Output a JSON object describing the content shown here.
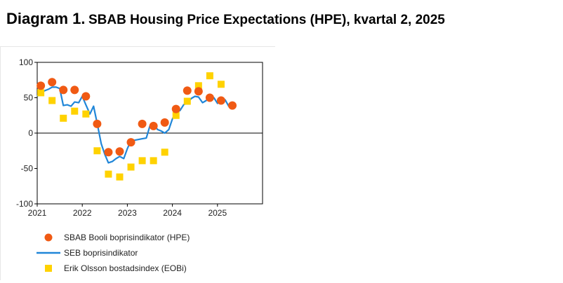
{
  "title": {
    "prefix": "Diagram 1.",
    "text": "SBAB Housing Price Expectations (HPE), kvartal 2, 2025"
  },
  "colors": {
    "hpe": "#F05A14",
    "seb": "#2086D8",
    "eobi": "#FFD200"
  },
  "chart_data": {
    "type": "line",
    "title": "",
    "xlabel": "",
    "ylabel": "",
    "xlim": [
      2021.0,
      2026.0
    ],
    "ylim": [
      -100,
      100
    ],
    "x_ticks": [
      2021,
      2022,
      2023,
      2024,
      2025
    ],
    "x_tick_labels": [
      "2021",
      "2022",
      "2023",
      "2024",
      "2025"
    ],
    "y_ticks": [
      100,
      50,
      0,
      -50,
      -100
    ],
    "y_tick_labels": [
      "100",
      "50",
      "0",
      "-50",
      "-100"
    ],
    "grid": false,
    "zero_line": true,
    "legend_position": "bottom",
    "series": [
      {
        "name": "SBAB Booli boprisindikator (HPE)",
        "style": "marker-circle",
        "color": "#F05A14",
        "x": [
          2021.08,
          2021.33,
          2021.58,
          2021.83,
          2022.08,
          2022.33,
          2022.58,
          2022.83,
          2023.08,
          2023.33,
          2023.58,
          2023.83,
          2024.08,
          2024.33,
          2024.58,
          2024.83,
          2025.08,
          2025.33
        ],
        "y": [
          67,
          72,
          61,
          61,
          52,
          13,
          -27,
          -26,
          -13,
          13,
          10,
          15,
          34,
          60,
          59,
          50,
          46,
          39
        ]
      },
      {
        "name": "SEB boprisindikator",
        "style": "line",
        "color": "#2086D8",
        "x": [
          2021.0,
          2021.08,
          2021.17,
          2021.25,
          2021.33,
          2021.42,
          2021.5,
          2021.58,
          2021.67,
          2021.75,
          2021.83,
          2021.92,
          2022.0,
          2022.08,
          2022.17,
          2022.25,
          2022.33,
          2022.42,
          2022.5,
          2022.58,
          2022.67,
          2022.75,
          2022.83,
          2022.92,
          2023.0,
          2023.08,
          2023.17,
          2023.25,
          2023.33,
          2023.42,
          2023.5,
          2023.58,
          2023.67,
          2023.75,
          2023.83,
          2023.92,
          2024.0,
          2024.08,
          2024.17,
          2024.25,
          2024.33,
          2024.42,
          2024.5,
          2024.58,
          2024.67,
          2024.75,
          2024.83,
          2024.92,
          2025.0,
          2025.08,
          2025.17,
          2025.25,
          2025.33
        ],
        "y": [
          52,
          58,
          60,
          62,
          65,
          65,
          63,
          39,
          40,
          38,
          44,
          43,
          52,
          40,
          27,
          38,
          14,
          -15,
          -30,
          -42,
          -40,
          -36,
          -33,
          -36,
          -22,
          -11,
          -10,
          -9,
          -8,
          -7,
          10,
          13,
          5,
          3,
          0,
          5,
          20,
          29,
          32,
          40,
          43,
          49,
          52,
          51,
          43,
          46,
          50,
          50,
          42,
          45,
          47,
          38,
          37
        ]
      },
      {
        "name": "Erik Olsson bostadsindex (EOBi)",
        "style": "marker-square",
        "color": "#FFD200",
        "x": [
          2021.08,
          2021.33,
          2021.58,
          2021.83,
          2022.08,
          2022.33,
          2022.58,
          2022.83,
          2023.08,
          2023.33,
          2023.58,
          2023.83,
          2024.08,
          2024.33,
          2024.58,
          2024.83,
          2025.08
        ],
        "y": [
          57,
          46,
          21,
          31,
          27,
          -25,
          -58,
          -62,
          -48,
          -39,
          -39,
          -27,
          25,
          45,
          67,
          81,
          69
        ]
      }
    ]
  }
}
